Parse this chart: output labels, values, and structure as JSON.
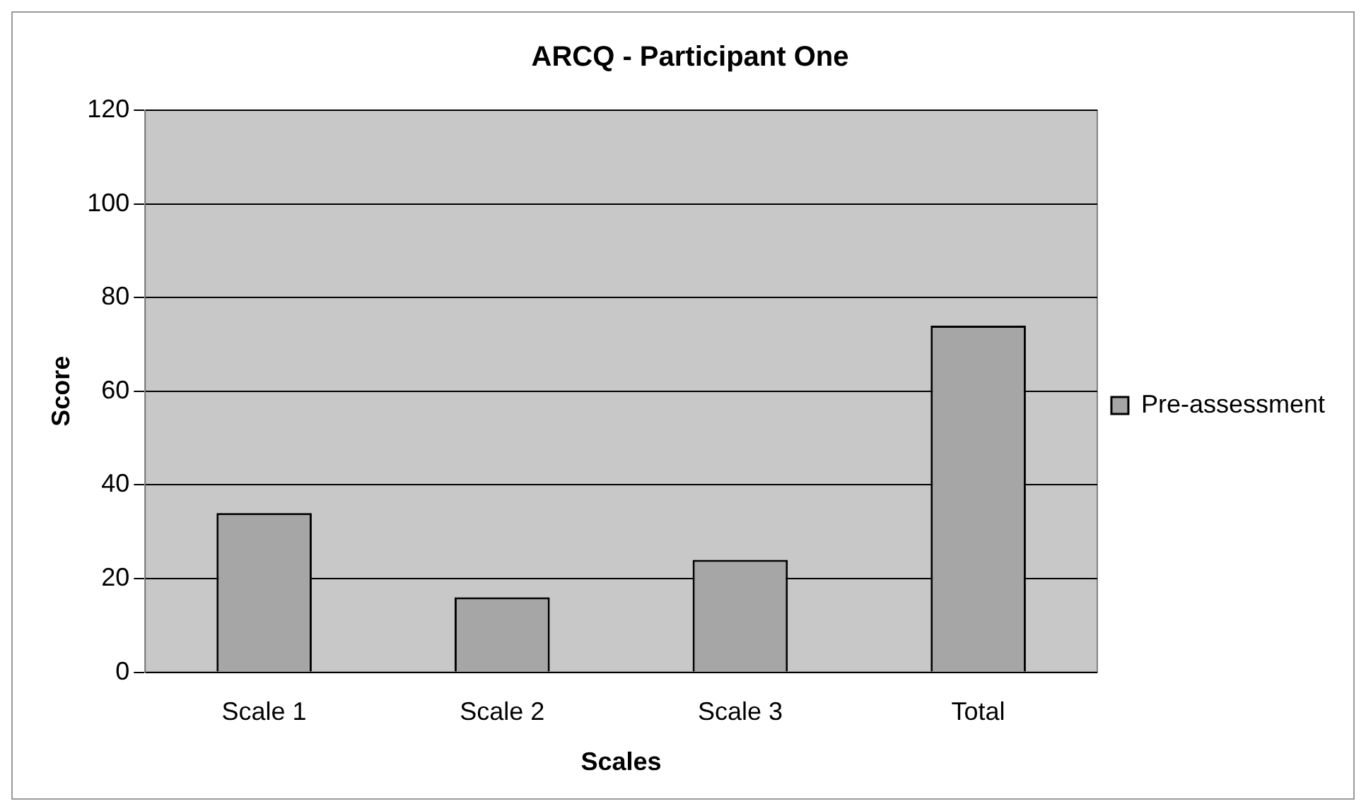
{
  "chart_data": {
    "type": "bar",
    "title": "ARCQ - Participant One",
    "xlabel": "Scales",
    "ylabel": "Score",
    "categories": [
      "Scale 1",
      "Scale 2",
      "Scale 3",
      "Total"
    ],
    "series": [
      {
        "name": "Pre-assessment",
        "color": "#a6a6a6",
        "values": [
          34,
          16,
          24,
          74
        ]
      }
    ],
    "ylim": [
      0,
      120
    ],
    "yticks": [
      0,
      20,
      40,
      60,
      80,
      100,
      120
    ],
    "grid": "y",
    "legend": "right"
  }
}
